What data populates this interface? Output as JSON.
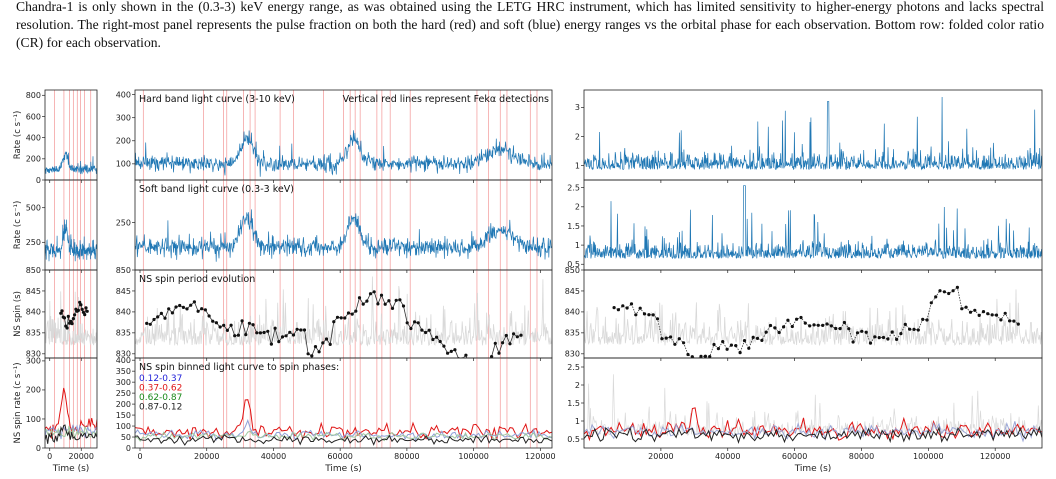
{
  "caption": {
    "lines": [
      "Chandra-1 is only shown in the (0.3-3) keV energy range, as was obtained using the LETG HRC instrument, which has limited sensitivity to",
      "higher-energy photons and lacks spectral resolution. The right-most panel represents the pulse fraction on both the hard (red) and soft (blue)",
      "energy ranges vs the orbital phase for each observation. Bottom row: folded color ratio (CR) for each observation."
    ]
  },
  "colors": {
    "rate": "#1f77b4",
    "red_line": "#f4a3a3",
    "gray": "#d9d9d9",
    "spin": "#111111",
    "phase1": "#1f1fd8",
    "phase2": "#e01515",
    "phase3": "#1a8a1a",
    "phase4": "#222222"
  },
  "chart_data": [
    {
      "type": "line",
      "panel": "left column",
      "xticks": [
        0,
        20000
      ],
      "xlabel": "Time (s)",
      "rows": [
        {
          "ylabel": "Rate (c s⁻¹)",
          "yticks": [
            0,
            200,
            400,
            600,
            800
          ],
          "ylim": [
            0,
            850
          ]
        },
        {
          "ylabel": "Rate (c s⁻¹)",
          "yticks": [
            250,
            500
          ],
          "ylim": [
            50,
            700
          ]
        },
        {
          "ylabel": "NS spin (s)",
          "yticks": [
            830,
            835,
            840,
            845,
            850
          ],
          "ylim": [
            829,
            850
          ]
        },
        {
          "ylabel": "NS spin rate (c s⁻¹)",
          "yticks": [
            0,
            100,
            200,
            300
          ],
          "ylim": [
            0,
            310
          ]
        }
      ]
    },
    {
      "type": "line",
      "panel": "middle column",
      "xticks": [
        0,
        20000,
        40000,
        60000,
        80000,
        100000,
        120000
      ],
      "xlabel": "Time (s)",
      "rows": [
        {
          "yticks": [
            100,
            200,
            300,
            400
          ],
          "ylim": [
            30,
            420
          ],
          "annotation": "Hard band light curve (3-10 keV)",
          "annotation_right": "Vertical red lines represent Fekα detections"
        },
        {
          "yticks": [
            250
          ],
          "ylim": [
            60,
            420
          ],
          "annotation": "Soft band light curve (0.3-3 keV)"
        },
        {
          "yticks": [
            830,
            835,
            840,
            845,
            850
          ],
          "ylim": [
            829,
            850
          ],
          "annotation": "NS spin period evolution"
        },
        {
          "yticks": [
            0,
            50,
            100,
            150,
            200,
            250,
            300,
            350,
            400
          ],
          "ylim": [
            0,
            410
          ],
          "annotation": "NS spin binned light curve to spin phases:",
          "legend": [
            "0.12-0.37",
            "0.37-0.62",
            "0.62-0.87",
            "0.87-0.12"
          ]
        }
      ],
      "fek_lines_s": [
        1000,
        19000,
        25000,
        26000,
        31000,
        33000,
        34500,
        42000,
        46000,
        55000,
        61000,
        63000,
        64500,
        66000,
        71000,
        72500,
        75000,
        81000,
        101000,
        104500,
        108000,
        110000,
        117000,
        119000
      ]
    },
    {
      "type": "line",
      "panel": "right column",
      "xticks": [
        20000,
        40000,
        60000,
        80000,
        100000,
        120000
      ],
      "xlabel": "Time (s)",
      "rows": [
        {
          "yticks": [
            1,
            2,
            3
          ],
          "ylim": [
            0.5,
            3.6
          ]
        },
        {
          "yticks": [
            0.5,
            1.0,
            1.5,
            2.0,
            2.5
          ],
          "ylim": [
            0.35,
            2.7
          ]
        },
        {
          "yticks": [
            830,
            835,
            840,
            845,
            850
          ],
          "ylim": [
            829,
            850
          ]
        },
        {
          "yticks": [
            0.5,
            1.0,
            1.5,
            2.0,
            2.5
          ],
          "ylim": [
            0.25,
            2.75
          ]
        }
      ]
    }
  ]
}
